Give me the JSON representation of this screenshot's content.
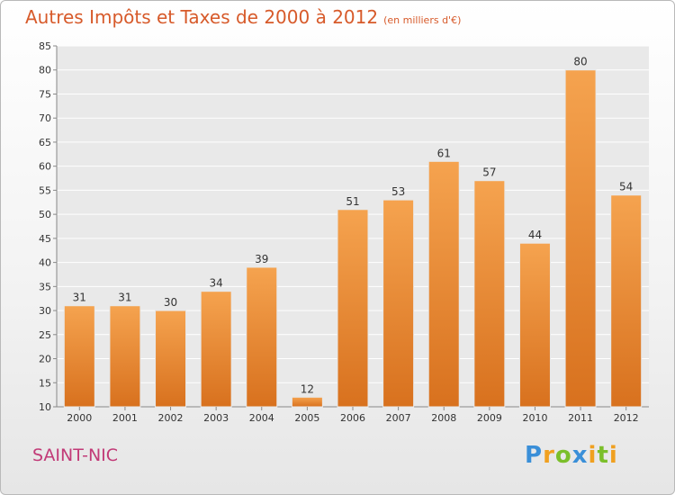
{
  "header": {
    "title": "Autres Impôts et Taxes de 2000 à 2012",
    "subtitle": "(en milliers d'€)"
  },
  "footer": {
    "place": "SAINT-NIC",
    "logo": [
      "P",
      "r",
      "o",
      "x",
      "i",
      "t",
      "i"
    ]
  },
  "colors": {
    "title": "#d75a2a",
    "bar_light": "#f5a34f",
    "bar_dark": "#d8711e",
    "place": "#c23a77"
  },
  "chart_data": {
    "type": "bar",
    "categories": [
      "2000",
      "2001",
      "2002",
      "2003",
      "2004",
      "2005",
      "2006",
      "2007",
      "2008",
      "2009",
      "2010",
      "2011",
      "2012"
    ],
    "values": [
      31,
      31,
      30,
      34,
      39,
      12,
      51,
      53,
      61,
      57,
      44,
      80,
      54
    ],
    "ylim": [
      10,
      85
    ],
    "yticks": [
      10,
      15,
      20,
      25,
      30,
      35,
      40,
      45,
      50,
      55,
      60,
      65,
      70,
      75,
      80,
      85
    ],
    "grid": true,
    "title": "Autres Impôts et Taxes de 2000 à 2012",
    "xlabel": "",
    "ylabel": ""
  }
}
